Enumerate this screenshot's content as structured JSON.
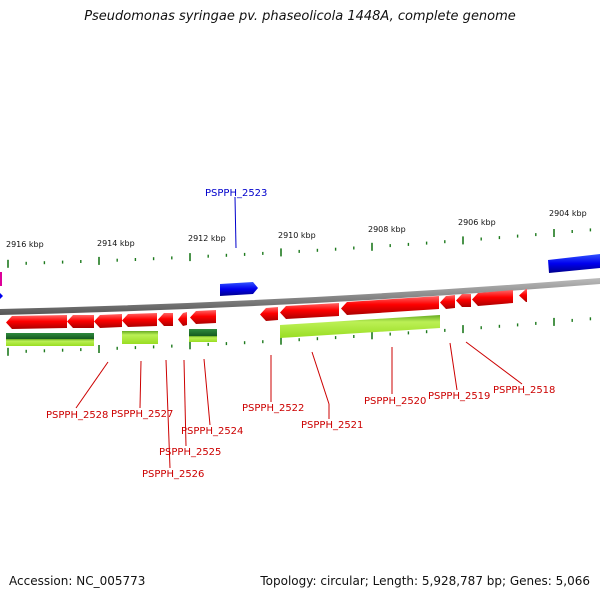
{
  "title": "Pseudomonas syringae pv. phaseolicola 1448A, complete genome",
  "footer": {
    "accession": "Accession: NC_005773",
    "summary": "Topology: circular; Length: 5,928,787 bp; Genes: 5,066"
  },
  "colors": {
    "backbone": "#808080",
    "gene_forward": "#0000ee",
    "gene_reverse": "#ee0000",
    "cds": "#99dd22",
    "rna": "#1e7a2e",
    "tick": "#1e7a1e",
    "label_red": "#cc0000",
    "label_blue": "#0000cc"
  },
  "scale_labels": [
    "2916 kbp",
    "2914 kbp",
    "2912 kbp",
    "2910 kbp",
    "2908 kbp",
    "2906 kbp",
    "2904 kbp"
  ],
  "gene_labels": [
    {
      "text": "PSPPH_2523",
      "strand": "forward"
    },
    {
      "text": "PSPPH_2528",
      "strand": "reverse"
    },
    {
      "text": "PSPPH_2527",
      "strand": "reverse"
    },
    {
      "text": "PSPPH_2526",
      "strand": "reverse"
    },
    {
      "text": "PSPPH_2525",
      "strand": "reverse"
    },
    {
      "text": "PSPPH_2524",
      "strand": "reverse"
    },
    {
      "text": "PSPPH_2522",
      "strand": "reverse"
    },
    {
      "text": "PSPPH_2521",
      "strand": "reverse"
    },
    {
      "text": "PSPPH_2520",
      "strand": "reverse"
    },
    {
      "text": "PSPPH_2519",
      "strand": "reverse"
    },
    {
      "text": "PSPPH_2518",
      "strand": "reverse"
    }
  ]
}
